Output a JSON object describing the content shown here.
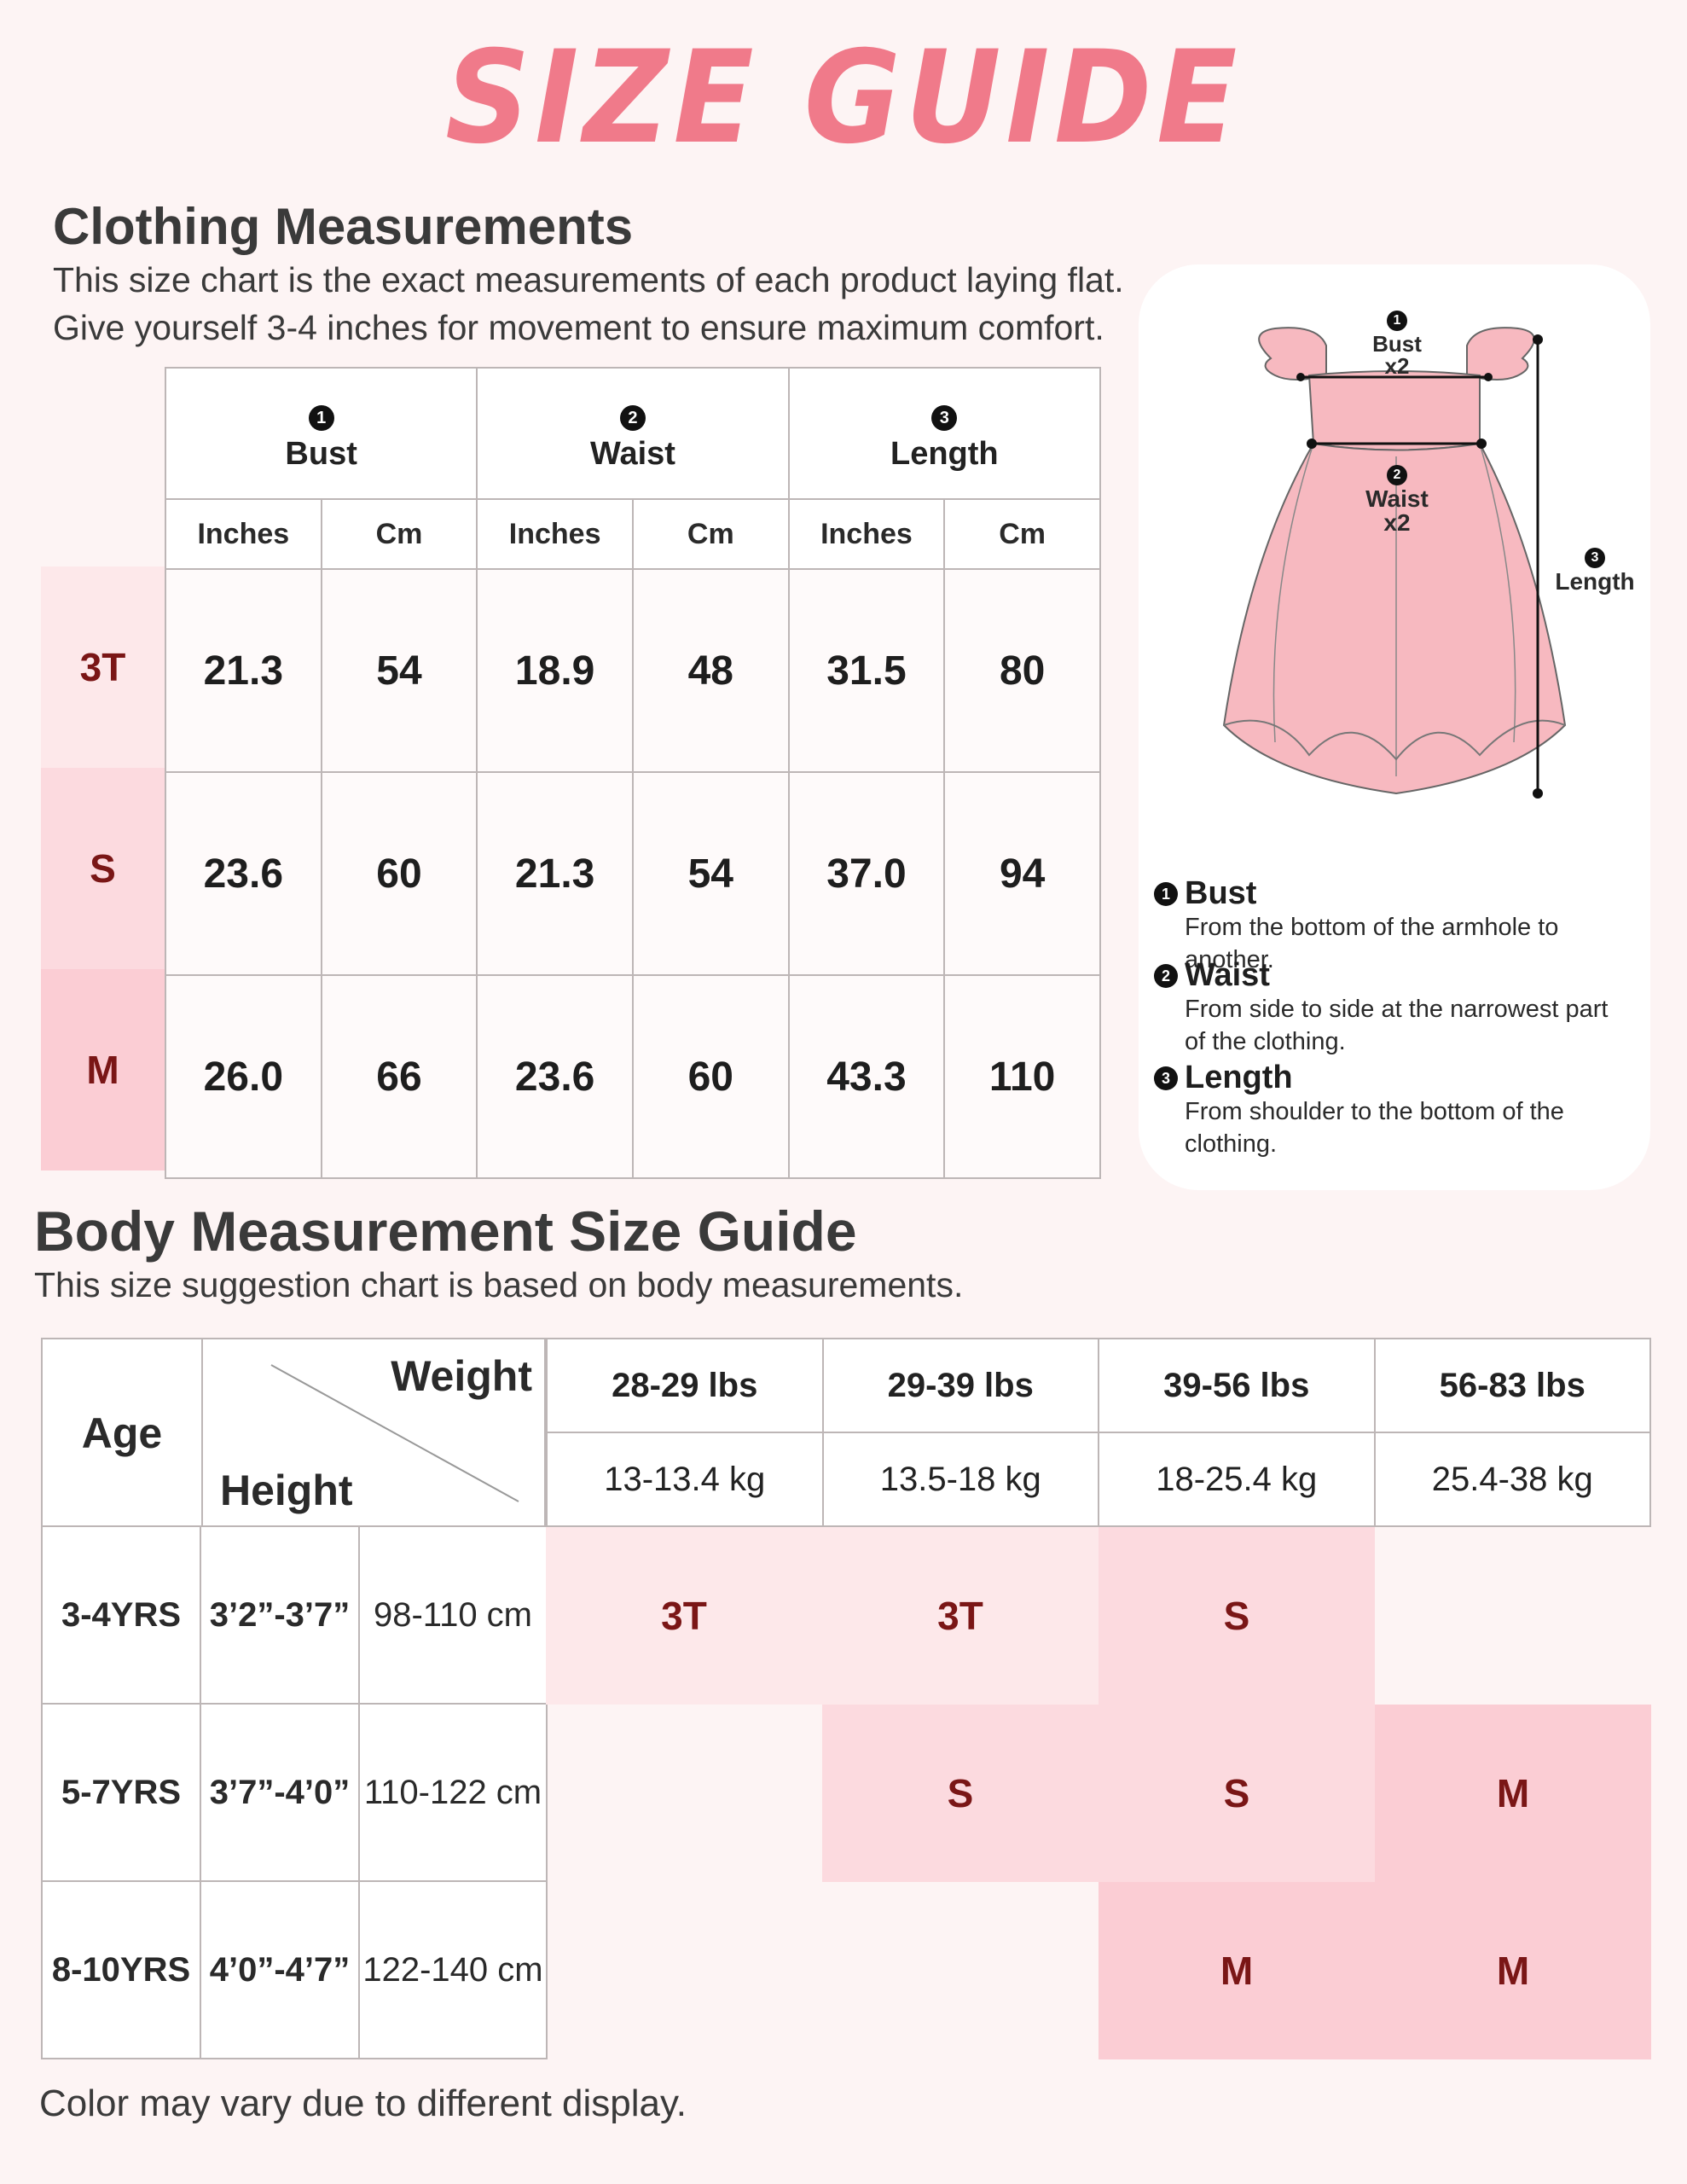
{
  "title": "SIZE GUIDE",
  "clothing": {
    "heading": "Clothing Measurements",
    "desc1": "This size chart is the exact measurements of each product laying flat.",
    "desc2": "Give yourself 3-4 inches for movement to ensure maximum comfort.",
    "columns": [
      {
        "num": "1",
        "label": "Bust"
      },
      {
        "num": "2",
        "label": "Waist"
      },
      {
        "num": "3",
        "label": "Length"
      }
    ],
    "units": [
      "Inches",
      "Cm",
      "Inches",
      "Cm",
      "Inches",
      "Cm"
    ],
    "rows": [
      {
        "size": "3T",
        "values": [
          "21.3",
          "54",
          "18.9",
          "48",
          "31.5",
          "80"
        ]
      },
      {
        "size": "S",
        "values": [
          "23.6",
          "60",
          "21.3",
          "54",
          "37.0",
          "94"
        ]
      },
      {
        "size": "M",
        "values": [
          "26.0",
          "66",
          "23.6",
          "60",
          "43.3",
          "110"
        ]
      }
    ],
    "row_colors": [
      "#fde8ea",
      "#fcdadf",
      "#fbcdd4"
    ]
  },
  "diagram": {
    "bust_num": "1",
    "bust_label": "Bust",
    "bust_mult": "x2",
    "waist_num": "2",
    "waist_label": "Waist",
    "waist_mult": "x2",
    "length_num": "3",
    "length_label": "Length",
    "dress_color": "#f7b9c0"
  },
  "definitions": [
    {
      "num": "1",
      "title": "Bust",
      "text": "From the bottom of the armhole to another."
    },
    {
      "num": "2",
      "title": "Waist",
      "text": "From side to side at the narrowest part of the clothing."
    },
    {
      "num": "3",
      "title": "Length",
      "text": "From shoulder to the bottom of the clothing."
    }
  ],
  "body": {
    "heading": "Body Measurement Size Guide",
    "desc": "This size suggestion chart is based on body measurements.",
    "age_label": "Age",
    "weight_label": "Weight",
    "height_label": "Height",
    "weights_lbs": [
      "28-29 lbs",
      "29-39 lbs",
      "39-56 lbs",
      "56-83 lbs"
    ],
    "weights_kg": [
      "13-13.4 kg",
      "13.5-18 kg",
      "18-25.4 kg",
      "25.4-38 kg"
    ],
    "rows": [
      {
        "age": "3-4YRS",
        "height_ft": "3’2”-3’7”",
        "height_cm": "98-110 cm",
        "sizes": [
          "3T",
          "3T",
          "S",
          ""
        ]
      },
      {
        "age": "5-7YRS",
        "height_ft": "3’7”-4’0”",
        "height_cm": "110-122 cm",
        "sizes": [
          "",
          "S",
          "S",
          "M"
        ]
      },
      {
        "age": "8-10YRS",
        "height_ft": "4’0”-4’7”",
        "height_cm": "122-140 cm",
        "sizes": [
          "",
          "",
          "M",
          "M"
        ]
      }
    ],
    "colors": {
      "3T": "#fde8ea",
      "S": "#fcdadf",
      "M": "#fbcdd4"
    }
  },
  "footer": "Color may vary due to different display."
}
